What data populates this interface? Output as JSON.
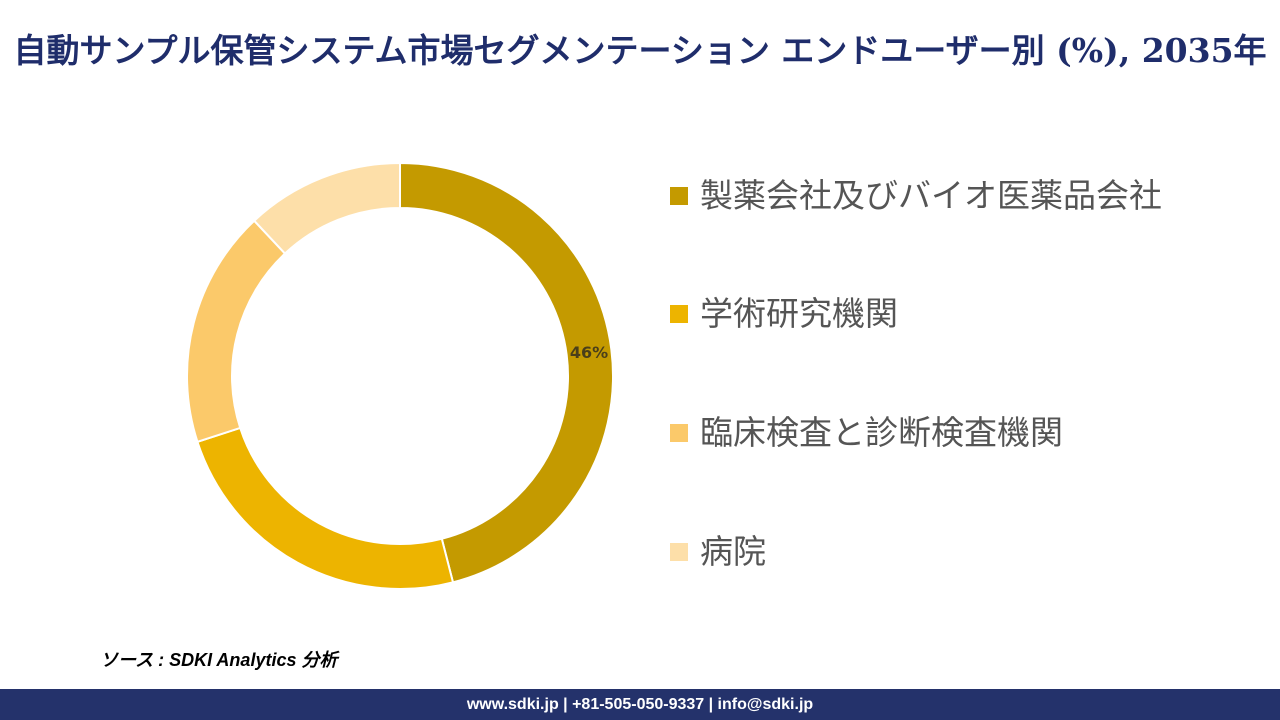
{
  "title": "自動サンプル保管システム市場セグメンテーション エンドユーザー別 (%), 2035年",
  "chart_data": {
    "type": "pie",
    "variant": "donut",
    "title": "自動サンプル保管システム市場セグメンテーション エンドユーザー別 (%), 2035年",
    "categories": [
      "製薬会社及びバイオ医薬品会社",
      "学術研究機関",
      "臨床検査と診断検査機関",
      "病院"
    ],
    "values": [
      46,
      24,
      18,
      12
    ],
    "data_labels": [
      "46%",
      "",
      "",
      ""
    ],
    "colors": [
      "#C49A00",
      "#EDB400",
      "#FBC96A",
      "#FDDFA9"
    ],
    "legend": "right"
  },
  "source": "ソース : SDKI Analytics 分析",
  "footer": "www.sdki.jp | +81-505-050-9337 | info@sdki.jp"
}
